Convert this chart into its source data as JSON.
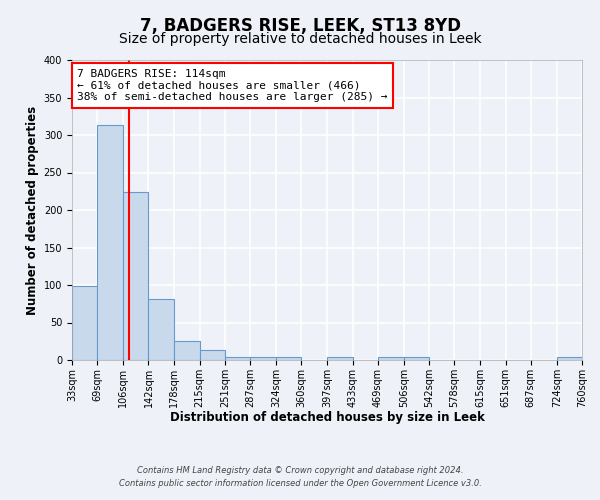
{
  "title": "7, BADGERS RISE, LEEK, ST13 8YD",
  "subtitle": "Size of property relative to detached houses in Leek",
  "xlabel": "Distribution of detached houses by size in Leek",
  "ylabel": "Number of detached properties",
  "bin_edges": [
    33,
    69,
    106,
    142,
    178,
    215,
    251,
    287,
    324,
    360,
    397,
    433,
    469,
    506,
    542,
    578,
    615,
    651,
    687,
    724,
    760
  ],
  "bar_heights": [
    99,
    313,
    224,
    81,
    25,
    13,
    4,
    4,
    4,
    0,
    4,
    0,
    4,
    4,
    0,
    0,
    0,
    0,
    0,
    4
  ],
  "bar_color": "#c9d9ec",
  "bar_edgecolor": "#6699cc",
  "bar_linewidth": 0.8,
  "vline_x": 114,
  "vline_color": "red",
  "vline_linewidth": 1.5,
  "ylim": [
    0,
    400
  ],
  "yticks": [
    0,
    50,
    100,
    150,
    200,
    250,
    300,
    350,
    400
  ],
  "annotation_line1": "7 BADGERS RISE: 114sqm",
  "annotation_line2": "← 61% of detached houses are smaller (466)",
  "annotation_line3": "38% of semi-detached houses are larger (285) →",
  "annotation_box_edgecolor": "red",
  "annotation_box_facecolor": "white",
  "footer_line1": "Contains HM Land Registry data © Crown copyright and database right 2024.",
  "footer_line2": "Contains public sector information licensed under the Open Government Licence v3.0.",
  "tick_labels": [
    "33sqm",
    "69sqm",
    "106sqm",
    "142sqm",
    "178sqm",
    "215sqm",
    "251sqm",
    "287sqm",
    "324sqm",
    "360sqm",
    "397sqm",
    "433sqm",
    "469sqm",
    "506sqm",
    "542sqm",
    "578sqm",
    "615sqm",
    "651sqm",
    "687sqm",
    "724sqm",
    "760sqm"
  ],
  "background_color": "#eef2f8",
  "grid_color": "white",
  "title_fontsize": 12,
  "subtitle_fontsize": 10,
  "axis_label_fontsize": 8.5,
  "tick_fontsize": 7,
  "annotation_fontsize": 8,
  "footer_fontsize": 6
}
